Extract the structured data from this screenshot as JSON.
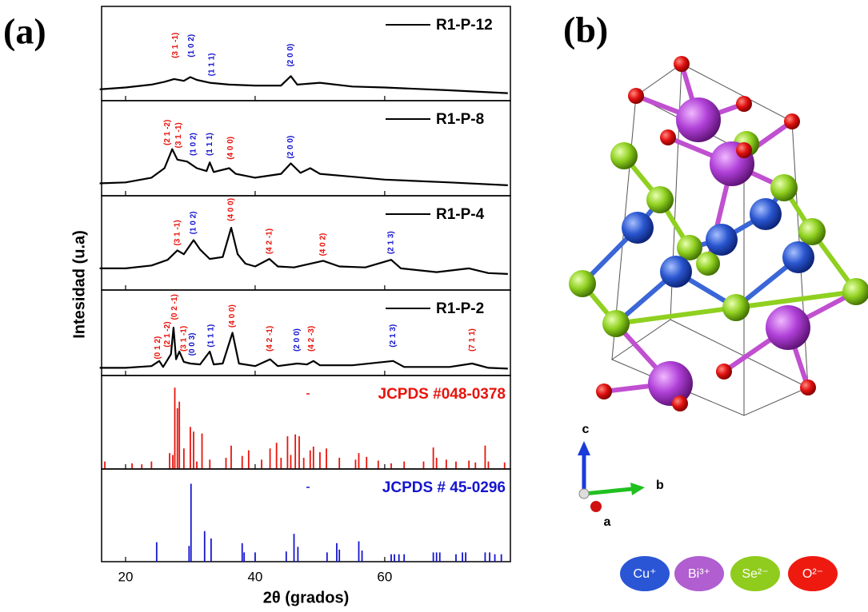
{
  "figure": {
    "panel_a": "(a)",
    "panel_b": "(b)",
    "ylabel": "Intesidad (u.a)"
  },
  "chart_data": [
    {
      "type": "line",
      "xlim": [
        16.3,
        79.4
      ],
      "ylim": [
        0,
        100
      ],
      "x": [
        16,
        20,
        24,
        26,
        27.5,
        29,
        30,
        31,
        33,
        36,
        40,
        44,
        45.5,
        46.5,
        50,
        55,
        60,
        70,
        79
      ],
      "series": [
        {
          "name": "R1-P-12",
          "color": "#000000",
          "values": [
            12,
            14,
            17,
            20,
            23,
            21,
            25,
            22,
            19,
            17,
            16,
            16,
            26,
            17,
            19,
            15,
            14,
            11,
            8
          ]
        }
      ],
      "annotations": [
        {
          "text": "(3 1 -1)",
          "x": 27.7,
          "y": 45,
          "color": "#e8140c"
        },
        {
          "text": "(1 0 2)",
          "x": 30.2,
          "y": 46,
          "color": "#1515d0"
        },
        {
          "text": "(1 1 1)",
          "x": 33.3,
          "y": 26,
          "color": "#1515d0"
        },
        {
          "text": "(2 0 0)",
          "x": 45.5,
          "y": 36,
          "color": "#1515d0"
        }
      ]
    },
    {
      "type": "line",
      "xlim": [
        16.3,
        79.4
      ],
      "ylim": [
        0,
        100
      ],
      "x": [
        16,
        20,
        24,
        26,
        27.2,
        28,
        29.5,
        31,
        32.5,
        33,
        33.6,
        36,
        37,
        40,
        44,
        45.5,
        47,
        48.5,
        50,
        55,
        60,
        70,
        79
      ],
      "series": [
        {
          "name": "R1-P-8",
          "color": "#000000",
          "values": [
            13,
            14,
            19,
            29,
            49,
            38,
            36,
            29,
            26,
            35,
            25,
            29,
            23,
            19,
            23,
            34,
            24,
            29,
            23,
            20,
            17,
            14,
            11
          ]
        }
      ],
      "annotations": [
        {
          "text": "(2 1 -2)",
          "x": 26.5,
          "y": 53,
          "color": "#e8140c"
        },
        {
          "text": "(3 1 -1)",
          "x": 28.2,
          "y": 50,
          "color": "#e8140c"
        },
        {
          "text": "(1 0 2)",
          "x": 30.5,
          "y": 42,
          "color": "#1515d0"
        },
        {
          "text": "(1 1 1)",
          "x": 33,
          "y": 42,
          "color": "#1515d0"
        },
        {
          "text": "(4 0 0)",
          "x": 36.2,
          "y": 38,
          "color": "#e8140c"
        },
        {
          "text": "(2 0 0)",
          "x": 45.5,
          "y": 39,
          "color": "#1515d0"
        }
      ]
    },
    {
      "type": "line",
      "xlim": [
        16.3,
        79.4
      ],
      "ylim": [
        0,
        100
      ],
      "x": [
        16,
        20,
        24,
        26.5,
        28,
        29,
        30.5,
        31.5,
        33,
        35,
        36.3,
        37.3,
        38.5,
        40,
        42.2,
        43.5,
        46,
        50.5,
        53,
        57,
        61,
        62.5,
        68,
        73,
        76,
        79
      ],
      "series": [
        {
          "name": "R1-P-4",
          "color": "#000000",
          "values": [
            23,
            23,
            26,
            32,
            42,
            38,
            53,
            43,
            33,
            35,
            66,
            38,
            28,
            25,
            33,
            25,
            24,
            31,
            25,
            24,
            32,
            23,
            19,
            23,
            18,
            17
          ]
        }
      ],
      "annotations": [
        {
          "text": "(3 1 -1)",
          "x": 28,
          "y": 47,
          "color": "#e8140c"
        },
        {
          "text": "(1 0 2)",
          "x": 30.5,
          "y": 59,
          "color": "#1515d0"
        },
        {
          "text": "(4 0 0)",
          "x": 36.3,
          "y": 73,
          "color": "#e8140c"
        },
        {
          "text": "(4 2 -1)",
          "x": 42.2,
          "y": 38,
          "color": "#e8140c"
        },
        {
          "text": "(4 0 2)",
          "x": 50.5,
          "y": 36,
          "color": "#e8140c"
        },
        {
          "text": "(2 1 3)",
          "x": 61,
          "y": 38,
          "color": "#1515d0"
        }
      ]
    },
    {
      "type": "line",
      "xlim": [
        16.3,
        79.4
      ],
      "ylim": [
        0,
        100
      ],
      "x": [
        16,
        20,
        24,
        25.2,
        25.8,
        27,
        27.4,
        27.8,
        28.3,
        29,
        30,
        31.5,
        33,
        33.6,
        35,
        36.5,
        37.5,
        40,
        42.3,
        43.5,
        46.5,
        48,
        49,
        50,
        55,
        61.3,
        63,
        70,
        73.5,
        76,
        79
      ],
      "series": [
        {
          "name": "R1-P-2",
          "color": "#000000",
          "values": [
            9,
            9,
            11,
            17,
            10,
            25,
            56,
            19,
            28,
            16,
            14,
            13,
            28,
            13,
            14,
            50,
            14,
            11,
            19,
            11,
            14,
            13,
            17,
            12,
            12,
            17,
            10,
            10,
            14,
            9,
            8
          ]
        }
      ],
      "annotations": [
        {
          "text": "(0 1 2)",
          "x": 25,
          "y": 19,
          "color": "#e8140c"
        },
        {
          "text": "(2 1 -2)",
          "x": 26.5,
          "y": 33,
          "color": "#e8140c"
        },
        {
          "text": "(0 2 -1)",
          "x": 27.6,
          "y": 65,
          "color": "#e8140c"
        },
        {
          "text": "(3 1 -1)",
          "x": 29,
          "y": 28,
          "color": "#e8140c"
        },
        {
          "text": "(0 0 3)",
          "x": 30.3,
          "y": 23,
          "color": "#1515d0"
        },
        {
          "text": "(1 1 1)",
          "x": 33.2,
          "y": 33,
          "color": "#1515d0"
        },
        {
          "text": "(4 0 0)",
          "x": 36.5,
          "y": 56,
          "color": "#e8140c"
        },
        {
          "text": "(4 2 -1)",
          "x": 42.3,
          "y": 28,
          "color": "#e8140c"
        },
        {
          "text": "(2 0 0)",
          "x": 46.5,
          "y": 28,
          "color": "#1515d0"
        },
        {
          "text": "(4 2 -3)",
          "x": 48.7,
          "y": 28,
          "color": "#e8140c"
        },
        {
          "text": "(2 1 3)",
          "x": 61.3,
          "y": 33,
          "color": "#1515d0"
        },
        {
          "text": "(7 1 1)",
          "x": 73.5,
          "y": 28,
          "color": "#e8140c"
        }
      ]
    },
    {
      "type": "stick",
      "xlim": [
        16.3,
        79.4
      ],
      "ylim": [
        0,
        100
      ],
      "x": [
        16.8,
        21,
        22.5,
        24,
        26.8,
        27.3,
        27.6,
        28,
        28.3,
        29,
        30,
        30.5,
        31,
        31.8,
        33,
        35.5,
        36.3,
        38,
        39,
        41,
        42.3,
        43.3,
        44,
        45,
        45.5,
        46.2,
        46.8,
        47.5,
        48.5,
        49,
        50,
        51,
        53,
        55.5,
        56,
        57.2,
        59,
        61,
        63,
        66,
        67.5,
        68,
        69.5,
        71,
        73,
        74,
        75.5,
        76,
        78.5
      ],
      "series": [
        {
          "name": "JCPDS #048-0378",
          "color": "#e8140c",
          "values": [
            8,
            6,
            5,
            8,
            17,
            15,
            87,
            65,
            72,
            22,
            45,
            40,
            8,
            38,
            10,
            12,
            25,
            14,
            20,
            10,
            22,
            28,
            12,
            35,
            15,
            37,
            35,
            12,
            20,
            24,
            18,
            22,
            12,
            10,
            17,
            13,
            9,
            6,
            8,
            8,
            23,
            12,
            10,
            8,
            9,
            7,
            25,
            8,
            7
          ]
        }
      ]
    },
    {
      "type": "stick",
      "xlim": [
        16.3,
        79.4
      ],
      "ylim": [
        0,
        100
      ],
      "xticks": [
        20,
        40,
        60
      ],
      "xlabel": "2θ (grados)",
      "x": [
        24.8,
        29.8,
        30.1,
        32.2,
        33.2,
        38,
        38.3,
        40,
        44.8,
        46,
        46.6,
        51.1,
        52.6,
        53,
        56,
        56.5,
        61,
        61.5,
        62.2,
        63,
        67.5,
        68,
        68.5,
        71,
        72,
        72.5,
        75.5,
        76.2,
        77,
        78
      ],
      "series": [
        {
          "name": "JCPDS # 45-0296",
          "color": "#1515d0",
          "values": [
            21,
            17,
            84,
            33,
            25,
            20,
            10,
            10,
            11,
            30,
            16,
            10,
            20,
            13,
            22,
            12,
            8,
            8,
            8,
            8,
            10,
            10,
            10,
            8,
            10,
            10,
            10,
            10,
            8,
            8
          ]
        }
      ]
    }
  ],
  "structure": {
    "axes": [
      "c",
      "b",
      "a"
    ],
    "legend": [
      "Cu⁺",
      "Bi³⁺",
      "Se²⁻",
      "O²⁻"
    ]
  }
}
